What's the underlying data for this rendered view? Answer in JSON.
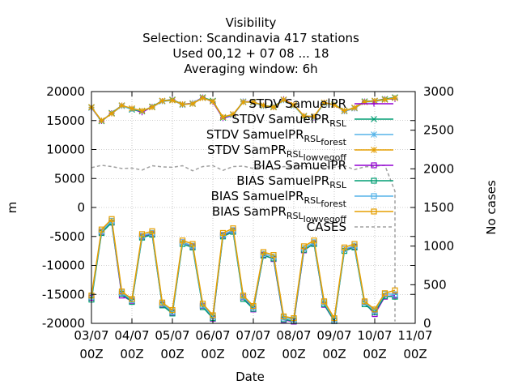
{
  "chart_data": {
    "type": "line",
    "title_lines": [
      "Visibility",
      "Selection: Scandinavia    417 stations",
      "Used  00,12 + 07 08 ... 18",
      "Averaging window:  6h"
    ],
    "xlabel": "Date",
    "ylabel": "m",
    "y2label": "No cases",
    "ylim": [
      -20000,
      20000
    ],
    "y2lim": [
      0,
      3000
    ],
    "yticks": [
      "20000",
      "15000",
      "10000",
      "5000",
      "0",
      "-5000",
      "-10000",
      "-15000",
      "-20000"
    ],
    "y2ticks": [
      "3000",
      "2500",
      "2000",
      "1500",
      "1000",
      "500",
      "0"
    ],
    "xticks": [
      {
        "day": 0,
        "label": [
          "03/07",
          "00Z"
        ]
      },
      {
        "day": 1,
        "label": [
          "04/07",
          "00Z"
        ]
      },
      {
        "day": 2,
        "label": [
          "05/07",
          "00Z"
        ]
      },
      {
        "day": 3,
        "label": [
          "06/07",
          "00Z"
        ]
      },
      {
        "day": 4,
        "label": [
          "07/07",
          "00Z"
        ]
      },
      {
        "day": 5,
        "label": [
          "08/07",
          "00Z"
        ]
      },
      {
        "day": 6,
        "label": [
          "09/07",
          "00Z"
        ]
      },
      {
        "day": 7,
        "label": [
          "10/07",
          "00Z"
        ]
      },
      {
        "day": 8,
        "label": [
          "11/07",
          "00Z"
        ]
      }
    ],
    "xlim_days": [
      0,
      8
    ],
    "grid": true,
    "legend_position": "top-right",
    "x_days": [
      0.0,
      0.25,
      0.5,
      0.75,
      1.0,
      1.25,
      1.5,
      1.75,
      2.0,
      2.25,
      2.5,
      2.75,
      3.0,
      3.25,
      3.5,
      3.75,
      4.0,
      4.25,
      4.5,
      4.75,
      5.0,
      5.25,
      5.5,
      5.75,
      6.0,
      6.25,
      6.5,
      6.75,
      7.0,
      7.25,
      7.5
    ],
    "series": [
      {
        "name": "STDV SamuelPR",
        "color": "#9400d3",
        "marker": "plus",
        "values": [
          17200,
          14900,
          16300,
          17600,
          17000,
          16400,
          17400,
          18400,
          18600,
          17800,
          18000,
          19000,
          18200,
          15400,
          15900,
          18300,
          18200,
          17600,
          17300,
          18700,
          17700,
          15800,
          15500,
          18100,
          17700,
          16600,
          17100,
          18300,
          18400,
          18700,
          18700
        ]
      },
      {
        "name": "STDV SamuelPR_RSL",
        "color": "#009e73",
        "marker": "x",
        "values": [
          17300,
          14900,
          16300,
          17600,
          16900,
          16600,
          17400,
          18400,
          18600,
          17800,
          17900,
          19000,
          18400,
          15500,
          16000,
          18200,
          18200,
          17600,
          17400,
          18600,
          17600,
          15700,
          15600,
          18000,
          17800,
          16700,
          17200,
          18300,
          18400,
          18700,
          19000
        ]
      },
      {
        "name": "STDV SamuelPR_RSL_forest",
        "color": "#56b4e9",
        "marker": "star",
        "values": [
          17200,
          15000,
          16200,
          17500,
          17000,
          16700,
          17300,
          18300,
          18500,
          17700,
          18000,
          18900,
          18300,
          15600,
          16000,
          18300,
          18100,
          17500,
          17300,
          18500,
          17600,
          15800,
          15600,
          18000,
          17700,
          16600,
          17100,
          18200,
          18300,
          18600,
          18900
        ]
      },
      {
        "name": "STDV SamPR_RSL_lowvegoff",
        "color": "#e69f00",
        "marker": "star",
        "values": [
          17300,
          15000,
          16200,
          17600,
          17100,
          16700,
          17300,
          18400,
          18500,
          17800,
          17900,
          18900,
          18300,
          15600,
          16100,
          18200,
          18200,
          17600,
          17300,
          18600,
          17700,
          15800,
          15700,
          18100,
          17700,
          16700,
          17200,
          18200,
          18400,
          18600,
          18900
        ]
      },
      {
        "name": "BIAS SamuelPR",
        "color": "#9400d3",
        "marker": "square",
        "values": [
          -15600,
          -4200,
          -2600,
          -15200,
          -16200,
          -5000,
          -4600,
          -16800,
          -18200,
          -6000,
          -6700,
          -17000,
          -19200,
          -4800,
          -4000,
          -15500,
          -17600,
          -8200,
          -8900,
          -19400,
          -19700,
          -7400,
          -6200,
          -16800,
          -19600,
          -7200,
          -6800,
          -16400,
          -18400,
          -15400,
          -15200
        ]
      },
      {
        "name": "BIAS SamuelPR_RSL",
        "color": "#009e73",
        "marker": "square",
        "values": [
          -15900,
          -4400,
          -2600,
          -14900,
          -16300,
          -5200,
          -4700,
          -16900,
          -18300,
          -6300,
          -6900,
          -17200,
          -19100,
          -5000,
          -4200,
          -15800,
          -17500,
          -8300,
          -8800,
          -19300,
          -19600,
          -7300,
          -6300,
          -16700,
          -19600,
          -7500,
          -6900,
          -16700,
          -18100,
          -15300,
          -15400
        ]
      },
      {
        "name": "BIAS SamuelPR_RSL_forest",
        "color": "#56b4e9",
        "marker": "square",
        "values": [
          -15400,
          -4100,
          -2300,
          -14700,
          -16000,
          -4900,
          -4400,
          -16600,
          -18000,
          -6000,
          -6600,
          -16900,
          -18800,
          -4700,
          -3900,
          -15400,
          -17200,
          -8000,
          -8500,
          -19000,
          -19300,
          -7000,
          -6000,
          -16400,
          -19300,
          -7200,
          -6600,
          -16400,
          -17800,
          -14900,
          -15000
        ]
      },
      {
        "name": "BIAS SamPR_RSL_lowvegoff",
        "color": "#e69f00",
        "marker": "square",
        "values": [
          -15200,
          -3800,
          -2000,
          -14500,
          -15800,
          -4600,
          -4100,
          -16400,
          -17700,
          -5700,
          -6300,
          -16600,
          -18600,
          -4400,
          -3600,
          -15200,
          -17000,
          -7700,
          -8200,
          -18800,
          -19100,
          -6700,
          -5700,
          -16200,
          -19100,
          -6900,
          -6300,
          -16200,
          -17600,
          -14800,
          -14300
        ]
      }
    ],
    "cases": {
      "name": "CASES",
      "color": "#a0a0a0",
      "axis": "right",
      "x_days": [
        0.0,
        0.25,
        0.5,
        0.75,
        1.0,
        1.25,
        1.5,
        1.75,
        2.0,
        2.25,
        2.5,
        2.75,
        3.0,
        3.25,
        3.5,
        3.75,
        4.0,
        4.25,
        4.5,
        4.75,
        5.0,
        5.25,
        5.5,
        5.75,
        6.0,
        6.25,
        6.5,
        6.75,
        7.0,
        7.25,
        7.5,
        7.5
      ],
      "values": [
        2015,
        2045,
        2030,
        2005,
        2010,
        1985,
        2040,
        2025,
        2020,
        2040,
        1975,
        2030,
        2040,
        1980,
        2030,
        2035,
        2005,
        2045,
        1990,
        2030,
        2025,
        2040,
        2000,
        2030,
        2020,
        2040,
        1990,
        2025,
        2035,
        2045,
        1710,
        25
      ]
    }
  }
}
